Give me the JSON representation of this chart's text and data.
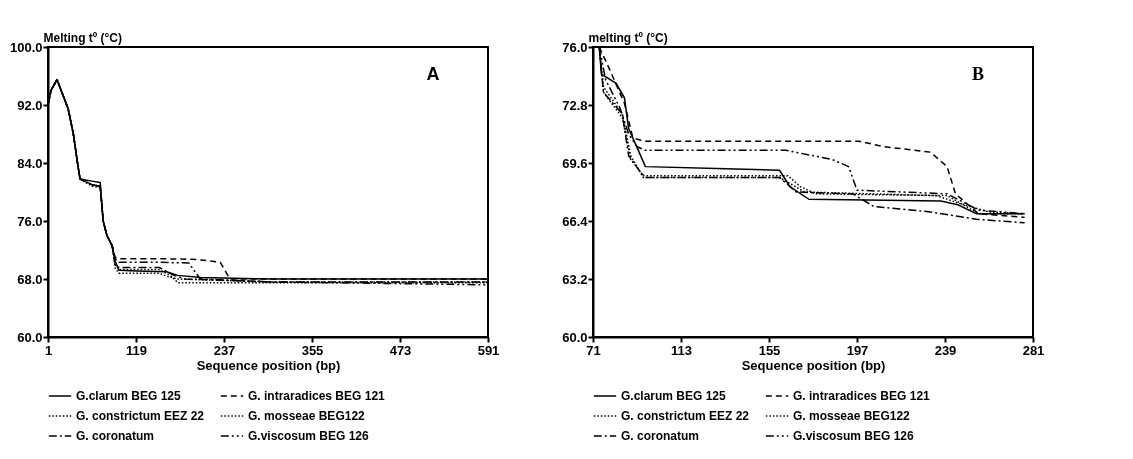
{
  "chart_data": [
    {
      "type": "line",
      "ylabel": "Melting tº (°C)",
      "xlabel": "Sequence position (bp)",
      "annotations": [
        "A"
      ],
      "xlim": [
        1,
        591
      ],
      "xticks": [
        1,
        119,
        237,
        355,
        473,
        591
      ],
      "ylim": [
        60,
        100
      ],
      "yticks": [
        {
          "value": 60,
          "label": "60.0"
        },
        {
          "value": 68,
          "label": "68.0"
        },
        {
          "value": 76,
          "label": "76.0"
        },
        {
          "value": 84,
          "label": "84.0"
        },
        {
          "value": 92,
          "label": "92.0"
        },
        {
          "value": 100,
          "label": "100.0"
        }
      ],
      "grid": false,
      "legend": "bottom",
      "series": [
        {
          "name": "G.clarum BEG 125",
          "color": "#000000",
          "line_style": "solid",
          "x": [
            1,
            5,
            13,
            28,
            35,
            41,
            44,
            60,
            71,
            75,
            80,
            87,
            91,
            96,
            120,
            160,
            175,
            206,
            300,
            591
          ],
          "values": [
            92,
            94,
            95.5,
            91.5,
            88,
            83.7,
            81.8,
            81.5,
            81.3,
            76,
            74,
            72.6,
            70.5,
            69.2,
            69.1,
            69.0,
            68.5,
            68.2,
            68.0,
            68.0
          ]
        },
        {
          "name": "G. intraradices BEG 121",
          "color": "#000000",
          "line_style": "dashed",
          "x": [
            1,
            5,
            13,
            28,
            35,
            41,
            44,
            60,
            71,
            75,
            80,
            87,
            91,
            96,
            150,
            200,
            232,
            245,
            300,
            591
          ],
          "values": [
            92,
            94,
            95.5,
            91.5,
            88,
            83.7,
            81.8,
            81,
            80.8,
            76,
            74,
            72.6,
            71,
            70.8,
            70.8,
            70.7,
            70.3,
            68.0,
            68.0,
            68.0
          ]
        },
        {
          "name": "G. constrictum EEZ 22",
          "color": "#000000",
          "line_style": "dotted",
          "x": [
            1,
            5,
            13,
            28,
            35,
            41,
            44,
            60,
            71,
            75,
            80,
            87,
            91,
            96,
            150,
            165,
            175,
            250,
            591
          ],
          "values": [
            92,
            94,
            95.5,
            91.5,
            88,
            83.7,
            81.8,
            80.8,
            80.6,
            76,
            74,
            72.6,
            70,
            69.3,
            69.3,
            68.5,
            67.5,
            67.5,
            67.5
          ]
        },
        {
          "name": "G. mosseae BEG122",
          "color": "#000000",
          "line_style": "dotted",
          "x": [
            1,
            5,
            13,
            28,
            35,
            41,
            44,
            60,
            71,
            75,
            80,
            87,
            91,
            96,
            150,
            160,
            175,
            300,
            591
          ],
          "values": [
            92,
            94,
            95.5,
            91.5,
            88,
            83.7,
            81.8,
            81,
            80.8,
            76,
            74,
            72.6,
            69.5,
            68.8,
            68.8,
            68.4,
            68.0,
            67.6,
            67.6
          ]
        },
        {
          "name": "G. coronatum",
          "color": "#000000",
          "line_style": "dashdot",
          "x": [
            1,
            5,
            13,
            28,
            35,
            41,
            44,
            60,
            71,
            75,
            80,
            87,
            91,
            96,
            150,
            170,
            185,
            300,
            591
          ],
          "values": [
            92,
            94,
            95.5,
            91.5,
            88,
            83.7,
            81.8,
            81,
            80.8,
            76,
            74,
            72.6,
            70,
            69.6,
            69.6,
            68.5,
            68,
            67.6,
            67.6
          ]
        },
        {
          "name": "G.viscosum BEG 126",
          "color": "#000000",
          "line_style": "dashdotdot",
          "x": [
            1,
            5,
            13,
            28,
            35,
            41,
            44,
            60,
            71,
            75,
            80,
            87,
            91,
            96,
            150,
            190,
            205,
            300,
            591
          ],
          "values": [
            92,
            94,
            95.5,
            91.5,
            88,
            83.7,
            81.8,
            81,
            80.8,
            76,
            74,
            72.6,
            70.8,
            70.3,
            70.3,
            70.2,
            68.0,
            67.6,
            67.2
          ]
        }
      ]
    },
    {
      "type": "line",
      "ylabel": "melting tº (°C)",
      "xlabel": "Sequence position (bp)",
      "annotations": [
        "B"
      ],
      "xlim": [
        71,
        281
      ],
      "xticks": [
        71,
        113,
        155,
        197,
        239,
        281
      ],
      "ylim": [
        60,
        76
      ],
      "yticks": [
        {
          "value": 60,
          "label": "60.0"
        },
        {
          "value": 63.2,
          "label": "63.2"
        },
        {
          "value": 66.4,
          "label": "66.4"
        },
        {
          "value": 69.6,
          "label": "69.6"
        },
        {
          "value": 72.8,
          "label": "72.8"
        },
        {
          "value": 76,
          "label": "76.0"
        }
      ],
      "grid": false,
      "legend": "bottom",
      "series": [
        {
          "name": "G.clarum BEG 125",
          "color": "#000000",
          "line_style": "solid",
          "x": [
            74,
            75,
            82,
            86,
            88,
            93,
            96,
            130,
            160,
            165,
            174,
            237,
            245,
            254,
            277
          ],
          "values": [
            76,
            74.5,
            74.0,
            73.2,
            71.5,
            70.2,
            69.4,
            69.3,
            69.2,
            68.3,
            67.6,
            67.5,
            67.3,
            66.8,
            66.8
          ]
        },
        {
          "name": "G. intraradices BEG 121",
          "color": "#000000",
          "line_style": "dashed",
          "x": [
            74,
            78,
            86,
            90,
            95,
            150,
            198,
            210,
            232,
            240,
            244,
            255,
            277
          ],
          "values": [
            76,
            75.0,
            72.9,
            71.0,
            70.8,
            70.8,
            70.8,
            70.5,
            70.2,
            69.4,
            67.9,
            66.8,
            66.6
          ]
        },
        {
          "name": "G. constrictum EEZ 22",
          "color": "#000000",
          "line_style": "dotted",
          "x": [
            74,
            76,
            85,
            89,
            95,
            130,
            164,
            170,
            177,
            240,
            255,
            277
          ],
          "values": [
            76,
            73.5,
            72.1,
            69.8,
            68.9,
            68.9,
            68.9,
            68.3,
            67.9,
            67.8,
            66.8,
            66.8
          ]
        },
        {
          "name": "G. mosseae BEG122",
          "color": "#000000",
          "line_style": "dotted",
          "x": [
            74,
            76,
            85,
            89,
            95,
            130,
            160,
            172,
            235,
            245,
            260,
            277
          ],
          "values": [
            76,
            73.8,
            72.3,
            70.0,
            68.8,
            68.8,
            68.8,
            68.0,
            67.8,
            67.4,
            66.9,
            66.8
          ]
        },
        {
          "name": "G. coronatum",
          "color": "#000000",
          "line_style": "dashdot",
          "x": [
            74,
            76,
            85,
            88,
            93,
            96,
            160,
            168,
            195,
            205,
            232,
            254,
            277
          ],
          "values": [
            76,
            73.5,
            72.3,
            70.0,
            69.2,
            68.8,
            68.8,
            68.0,
            67.9,
            67.2,
            66.9,
            66.5,
            66.3
          ]
        },
        {
          "name": "G.viscosum BEG 126",
          "color": "#000000",
          "line_style": "dashdotdot",
          "x": [
            74,
            77,
            84,
            88,
            92,
            96,
            163,
            185,
            193,
            197,
            240,
            255,
            277
          ],
          "values": [
            76,
            74.2,
            72.6,
            71.2,
            70.5,
            70.3,
            70.3,
            69.8,
            69.4,
            68.1,
            67.9,
            67.0,
            66.8
          ]
        }
      ]
    }
  ]
}
